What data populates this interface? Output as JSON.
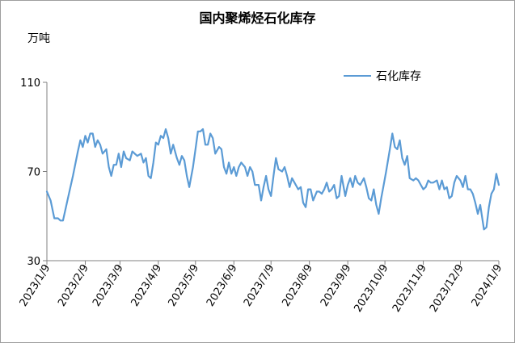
{
  "chart_data": {
    "type": "line",
    "title": "国内聚烯烃石化库存",
    "unit_label": "万吨",
    "xlabel": "",
    "ylabel": "万吨",
    "ylim": [
      30,
      110
    ],
    "yticks": [
      30,
      70,
      110
    ],
    "x_tick_labels": [
      "2023/1/9",
      "2023/2/9",
      "2023/3/9",
      "2023/4/9",
      "2023/5/9",
      "2023/6/9",
      "2023/7/9",
      "2023/8/9",
      "2023/9/9",
      "2023/10/9",
      "2023/11/9",
      "2023/12/9",
      "2024/1/9"
    ],
    "grid": false,
    "legend_position": "top-right",
    "series": [
      {
        "name": "石化库存",
        "color": "#5B9BD5",
        "points": [
          [
            "2023-01-09",
            61
          ],
          [
            "2023-01-12",
            57
          ],
          [
            "2023-01-15",
            49
          ],
          [
            "2023-01-18",
            49
          ],
          [
            "2023-01-20",
            48
          ],
          [
            "2023-01-22",
            48
          ],
          [
            "2023-01-26",
            58
          ],
          [
            "2023-01-30",
            68
          ],
          [
            "2023-02-03",
            79
          ],
          [
            "2023-02-05",
            84
          ],
          [
            "2023-02-07",
            81
          ],
          [
            "2023-02-09",
            86
          ],
          [
            "2023-02-11",
            83
          ],
          [
            "2023-02-13",
            87
          ],
          [
            "2023-02-15",
            87
          ],
          [
            "2023-02-17",
            81
          ],
          [
            "2023-02-19",
            84
          ],
          [
            "2023-02-21",
            82
          ],
          [
            "2023-02-23",
            78
          ],
          [
            "2023-02-26",
            80
          ],
          [
            "2023-02-28",
            72
          ],
          [
            "2023-03-02",
            68
          ],
          [
            "2023-03-04",
            73
          ],
          [
            "2023-03-06",
            73
          ],
          [
            "2023-03-08",
            78
          ],
          [
            "2023-03-10",
            72
          ],
          [
            "2023-03-12",
            79
          ],
          [
            "2023-03-14",
            76
          ],
          [
            "2023-03-17",
            75
          ],
          [
            "2023-03-19",
            79
          ],
          [
            "2023-03-21",
            78
          ],
          [
            "2023-03-23",
            77
          ],
          [
            "2023-03-26",
            78
          ],
          [
            "2023-03-28",
            74
          ],
          [
            "2023-03-30",
            76
          ],
          [
            "2023-04-01",
            68
          ],
          [
            "2023-04-03",
            67
          ],
          [
            "2023-04-05",
            74
          ],
          [
            "2023-04-07",
            83
          ],
          [
            "2023-04-09",
            82
          ],
          [
            "2023-04-11",
            86
          ],
          [
            "2023-04-13",
            85
          ],
          [
            "2023-04-15",
            89
          ],
          [
            "2023-04-17",
            85
          ],
          [
            "2023-04-19",
            78
          ],
          [
            "2023-04-21",
            82
          ],
          [
            "2023-04-24",
            76
          ],
          [
            "2023-04-26",
            73
          ],
          [
            "2023-04-28",
            77
          ],
          [
            "2023-04-30",
            75
          ],
          [
            "2023-05-02",
            68
          ],
          [
            "2023-05-04",
            63
          ],
          [
            "2023-05-07",
            72
          ],
          [
            "2023-05-09",
            80
          ],
          [
            "2023-05-11",
            88
          ],
          [
            "2023-05-13",
            88
          ],
          [
            "2023-05-15",
            89
          ],
          [
            "2023-05-17",
            82
          ],
          [
            "2023-05-19",
            82
          ],
          [
            "2023-05-21",
            87
          ],
          [
            "2023-05-23",
            85
          ],
          [
            "2023-05-25",
            78
          ],
          [
            "2023-05-28",
            81
          ],
          [
            "2023-05-30",
            80
          ],
          [
            "2023-06-01",
            72
          ],
          [
            "2023-06-03",
            69
          ],
          [
            "2023-06-05",
            74
          ],
          [
            "2023-06-07",
            69
          ],
          [
            "2023-06-09",
            72
          ],
          [
            "2023-06-11",
            68
          ],
          [
            "2023-06-13",
            72
          ],
          [
            "2023-06-15",
            74
          ],
          [
            "2023-06-18",
            72
          ],
          [
            "2023-06-20",
            68
          ],
          [
            "2023-06-22",
            72
          ],
          [
            "2023-06-24",
            70
          ],
          [
            "2023-06-26",
            64
          ],
          [
            "2023-06-29",
            64
          ],
          [
            "2023-07-01",
            57
          ],
          [
            "2023-07-03",
            63
          ],
          [
            "2023-07-05",
            68
          ],
          [
            "2023-07-07",
            62
          ],
          [
            "2023-07-09",
            59
          ],
          [
            "2023-07-11",
            68
          ],
          [
            "2023-07-13",
            76
          ],
          [
            "2023-07-15",
            71
          ],
          [
            "2023-07-18",
            70
          ],
          [
            "2023-07-20",
            72
          ],
          [
            "2023-07-22",
            68
          ],
          [
            "2023-07-24",
            63
          ],
          [
            "2023-07-26",
            67
          ],
          [
            "2023-07-28",
            65
          ],
          [
            "2023-07-31",
            62
          ],
          [
            "2023-08-02",
            63
          ],
          [
            "2023-08-04",
            56
          ],
          [
            "2023-08-06",
            54
          ],
          [
            "2023-08-08",
            62
          ],
          [
            "2023-08-10",
            62
          ],
          [
            "2023-08-12",
            57
          ],
          [
            "2023-08-15",
            61
          ],
          [
            "2023-08-17",
            61
          ],
          [
            "2023-08-19",
            60
          ],
          [
            "2023-08-21",
            62
          ],
          [
            "2023-08-23",
            65
          ],
          [
            "2023-08-25",
            61
          ],
          [
            "2023-08-27",
            62
          ],
          [
            "2023-08-29",
            64
          ],
          [
            "2023-08-31",
            58
          ],
          [
            "2023-09-02",
            59
          ],
          [
            "2023-09-04",
            68
          ],
          [
            "2023-09-07",
            59
          ],
          [
            "2023-09-09",
            64
          ],
          [
            "2023-09-11",
            67
          ],
          [
            "2023-09-13",
            63
          ],
          [
            "2023-09-15",
            68
          ],
          [
            "2023-09-17",
            65
          ],
          [
            "2023-09-19",
            64
          ],
          [
            "2023-09-22",
            67
          ],
          [
            "2023-09-24",
            63
          ],
          [
            "2023-09-26",
            58
          ],
          [
            "2023-09-28",
            57
          ],
          [
            "2023-09-30",
            62
          ],
          [
            "2023-10-02",
            55
          ],
          [
            "2023-10-04",
            51
          ],
          [
            "2023-10-06",
            58
          ],
          [
            "2023-10-08",
            64
          ],
          [
            "2023-10-10",
            70
          ],
          [
            "2023-10-13",
            80
          ],
          [
            "2023-10-15",
            87
          ],
          [
            "2023-10-17",
            81
          ],
          [
            "2023-10-19",
            80
          ],
          [
            "2023-10-21",
            84
          ],
          [
            "2023-10-23",
            76
          ],
          [
            "2023-10-25",
            73
          ],
          [
            "2023-10-27",
            77
          ],
          [
            "2023-10-29",
            67
          ],
          [
            "2023-11-01",
            66
          ],
          [
            "2023-11-03",
            67
          ],
          [
            "2023-11-05",
            66
          ],
          [
            "2023-11-07",
            64
          ],
          [
            "2023-11-09",
            62
          ],
          [
            "2023-11-11",
            63
          ],
          [
            "2023-11-13",
            66
          ],
          [
            "2023-11-15",
            65
          ],
          [
            "2023-11-17",
            65
          ],
          [
            "2023-11-20",
            66
          ],
          [
            "2023-11-22",
            62
          ],
          [
            "2023-11-24",
            66
          ],
          [
            "2023-11-26",
            62
          ],
          [
            "2023-11-28",
            63
          ],
          [
            "2023-11-30",
            58
          ],
          [
            "2023-12-02",
            59
          ],
          [
            "2023-12-04",
            65
          ],
          [
            "2023-12-06",
            68
          ],
          [
            "2023-12-09",
            66
          ],
          [
            "2023-12-11",
            63
          ],
          [
            "2023-12-13",
            68
          ],
          [
            "2023-12-15",
            62
          ],
          [
            "2023-12-17",
            62
          ],
          [
            "2023-12-19",
            60
          ],
          [
            "2023-12-21",
            56
          ],
          [
            "2023-12-23",
            51
          ],
          [
            "2023-12-25",
            55
          ],
          [
            "2023-12-28",
            44
          ],
          [
            "2023-12-30",
            45
          ],
          [
            "2024-01-01",
            54
          ],
          [
            "2024-01-03",
            60
          ],
          [
            "2024-01-05",
            62
          ],
          [
            "2024-01-07",
            69
          ],
          [
            "2024-01-09",
            64
          ]
        ]
      }
    ]
  }
}
